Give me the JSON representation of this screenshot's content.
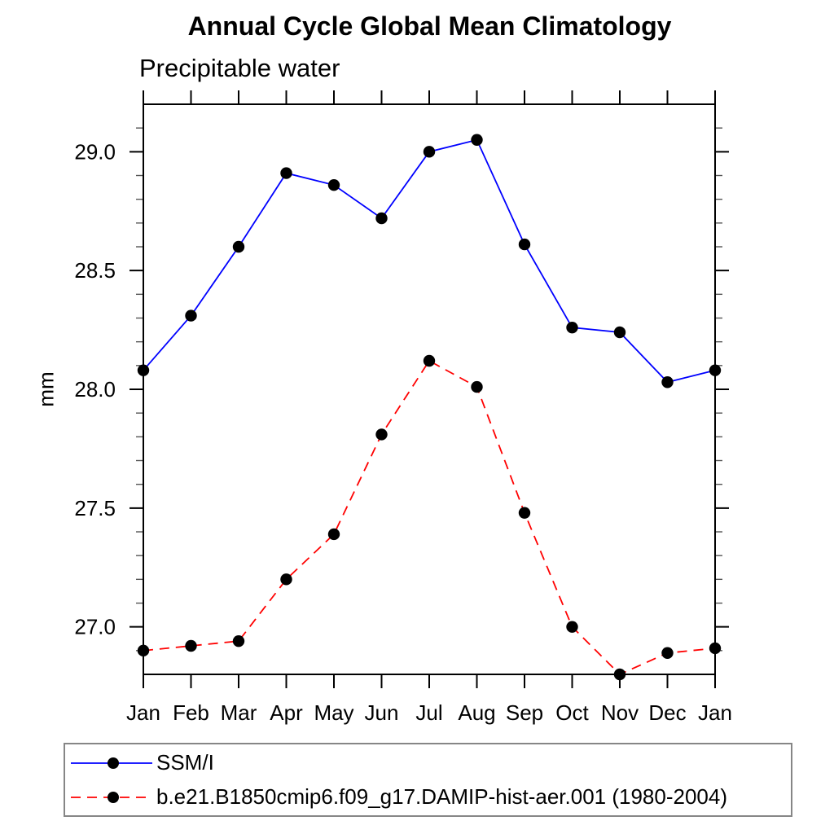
{
  "chart_data": {
    "type": "line",
    "title": "Annual Cycle Global Mean Climatology",
    "subtitle": "Precipitable water",
    "ylabel": "mm",
    "xlabel": "",
    "categories": [
      "Jan",
      "Feb",
      "Mar",
      "Apr",
      "May",
      "Jun",
      "Jul",
      "Aug",
      "Sep",
      "Oct",
      "Nov",
      "Dec",
      "Jan"
    ],
    "ylim": [
      26.8,
      29.2
    ],
    "y_major_ticks": [
      27.0,
      27.5,
      28.0,
      28.5,
      29.0
    ],
    "y_minor_step": 0.1,
    "grid": false,
    "legend_position": "bottom",
    "series": [
      {
        "name": "SSM/I",
        "color": "#0000ff",
        "line_style": "solid",
        "marker": "filled-circle",
        "marker_color": "#000000",
        "values": [
          28.08,
          28.31,
          28.6,
          28.91,
          28.86,
          28.72,
          29.0,
          29.05,
          28.61,
          28.26,
          28.24,
          28.03,
          28.08
        ]
      },
      {
        "name": "b.e21.B1850cmip6.f09_g17.DAMIP-hist-aer.001 (1980-2004)",
        "color": "#ff0000",
        "line_style": "dashed",
        "marker": "filled-circle",
        "marker_color": "#000000",
        "values": [
          26.9,
          26.92,
          26.94,
          27.2,
          27.39,
          27.81,
          28.12,
          28.01,
          27.48,
          27.0,
          26.8,
          26.89,
          26.91
        ]
      }
    ]
  }
}
